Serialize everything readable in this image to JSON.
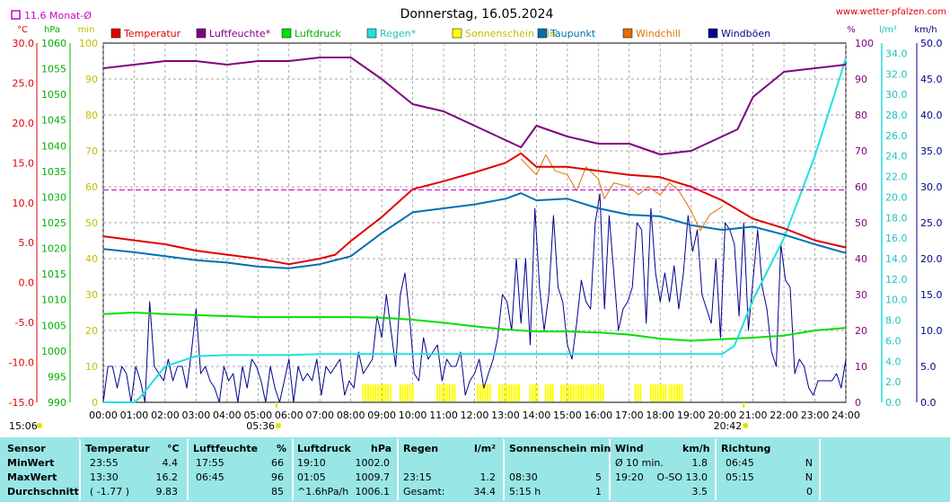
{
  "header": {
    "title": "Donnerstag, 16.05.2024",
    "website": "www.wetter-pfalzen.com",
    "month_avg_label": "11.6 Monat-Ø"
  },
  "colors": {
    "temperatur": "#e00000",
    "luftfeuchte": "#800080",
    "luftdruck": "#00e000",
    "regen": "#20e0e0",
    "sonnenschein": "#ffff00",
    "taupunkt": "#0070b0",
    "windchill": "#e07000",
    "windboeen": "#000090",
    "month_avg": "#cc00cc"
  },
  "chart_data": {
    "type": "line",
    "title": "Donnerstag, 16.05.2024",
    "legend_position": "top",
    "grid": true,
    "x": {
      "unit": "hours",
      "range": [
        0,
        24
      ],
      "tick_labels": [
        "00:00",
        "01:00",
        "02:00",
        "03:00",
        "04:00",
        "05:00",
        "06:00",
        "07:00",
        "08:00",
        "09:00",
        "10:00",
        "11:00",
        "12:00",
        "13:00",
        "14:00",
        "15:00",
        "16:00",
        "17:00",
        "18:00",
        "19:00",
        "20:00",
        "21:00",
        "22:00",
        "23:00",
        "24:00"
      ]
    },
    "axes": {
      "temp": {
        "unit": "°C",
        "range": [
          -15,
          30
        ],
        "ticks": [
          "-15.0",
          "-10.0",
          "-5.0",
          "0.0",
          "5.0",
          "10.0",
          "15.0",
          "20.0",
          "25.0",
          "30.0"
        ]
      },
      "pressure": {
        "unit": "hPa",
        "range": [
          990,
          1060
        ],
        "ticks": [
          "990",
          "995",
          "1000",
          "1005",
          "1010",
          "1015",
          "1020",
          "1025",
          "1030",
          "1035",
          "1040",
          "1045",
          "1050",
          "1055",
          "1060"
        ]
      },
      "month_avg_axis": {
        "unit": "min",
        "ticks": [
          "0",
          "10",
          "20",
          "30",
          "40",
          "50",
          "60",
          "70",
          "80",
          "90",
          "100"
        ]
      },
      "humidity": {
        "unit": "%",
        "range": [
          0,
          100
        ],
        "ticks": [
          "0",
          "10",
          "20",
          "30",
          "40",
          "50",
          "60",
          "70",
          "80",
          "90",
          "100"
        ]
      },
      "rain": {
        "unit": "l/m²",
        "range": [
          0,
          35
        ],
        "ticks": [
          "0.0",
          "2.0",
          "4.0",
          "6.0",
          "8.0",
          "10.0",
          "12.0",
          "14.0",
          "16.0",
          "18.0",
          "20.0",
          "22.0",
          "24.0",
          "26.0",
          "28.0",
          "30.0",
          "32.0",
          "34.0"
        ]
      },
      "wind": {
        "unit": "km/h",
        "range": [
          0,
          50
        ],
        "ticks": [
          "0.0",
          "5.0",
          "10.0",
          "15.0",
          "20.0",
          "25.0",
          "30.0",
          "35.0",
          "40.0",
          "45.0",
          "50.0"
        ]
      }
    },
    "month_avg_temp": 11.6,
    "sunrise": "05:36",
    "sunset": "20:42",
    "current_time": "15:06",
    "series": [
      {
        "name": "Temperatur",
        "axis": "temp",
        "x": [
          0,
          1,
          2,
          3,
          4,
          5,
          6,
          7,
          7.5,
          8,
          9,
          10,
          11,
          12,
          13,
          13.5,
          14,
          15,
          16,
          17,
          18,
          19,
          20,
          21,
          22,
          23,
          24
        ],
        "y": [
          5.8,
          5.3,
          4.8,
          4.0,
          3.5,
          3.0,
          2.3,
          3.0,
          3.5,
          5.2,
          8.2,
          11.7,
          12.7,
          13.8,
          15.0,
          16.2,
          14.5,
          14.5,
          14.0,
          13.5,
          13.2,
          12.0,
          10.3,
          8.0,
          6.8,
          5.3,
          4.4
        ]
      },
      {
        "name": "Luftfeuchte*",
        "axis": "humidity",
        "x": [
          0,
          1,
          2,
          3,
          4,
          5,
          6,
          7,
          8,
          9,
          10,
          11,
          12,
          13,
          13.5,
          14,
          15,
          16,
          17,
          18,
          19,
          20,
          20.5,
          21,
          22,
          23,
          24
        ],
        "y": [
          93,
          94,
          95,
          95,
          94,
          95,
          95,
          96,
          96,
          90,
          83,
          81,
          77,
          73,
          71,
          77,
          74,
          72,
          72,
          69,
          70,
          74,
          76,
          85,
          92,
          93,
          94
        ]
      },
      {
        "name": "Luftdruck",
        "axis": "pressure",
        "x": [
          0,
          1,
          2,
          3,
          4,
          5,
          6,
          7,
          8,
          9,
          10,
          11,
          12,
          13,
          14,
          15,
          16,
          17,
          18,
          19,
          20,
          21,
          22,
          23,
          24
        ],
        "y": [
          1007.2,
          1007.5,
          1007.2,
          1007.0,
          1006.8,
          1006.6,
          1006.6,
          1006.6,
          1006.6,
          1006.5,
          1006.1,
          1005.5,
          1004.8,
          1004.2,
          1003.8,
          1003.8,
          1003.6,
          1003.2,
          1002.4,
          1002.0,
          1002.3,
          1002.6,
          1003.0,
          1004.0,
          1004.5
        ]
      },
      {
        "name": "Regen*",
        "axis": "rain",
        "x": [
          0,
          1,
          1.2,
          2,
          3,
          4,
          5,
          6,
          7,
          8,
          19,
          20,
          20.4,
          21,
          22,
          23,
          24
        ],
        "y": [
          0,
          0,
          0.5,
          3.5,
          4.5,
          4.6,
          4.6,
          4.6,
          4.7,
          4.7,
          4.7,
          4.7,
          5.5,
          10,
          16,
          24,
          33.5
        ]
      },
      {
        "name": "Taupunkt",
        "axis": "temp",
        "x": [
          0,
          1,
          2,
          3,
          4,
          5,
          6,
          7,
          8,
          9,
          10,
          11,
          12,
          13,
          13.5,
          14,
          15,
          16,
          17,
          18,
          19,
          20,
          21,
          22,
          23,
          24
        ],
        "y": [
          4.2,
          3.8,
          3.3,
          2.8,
          2.5,
          2.0,
          1.8,
          2.3,
          3.3,
          6.2,
          8.8,
          9.3,
          9.8,
          10.5,
          11.2,
          10.3,
          10.5,
          9.3,
          8.5,
          8.3,
          7.2,
          6.6,
          7.0,
          6.0,
          4.8,
          3.7
        ]
      },
      {
        "name": "Windchill",
        "axis": "temp",
        "x": [
          13.5,
          14,
          14.3,
          14.6,
          15,
          15.3,
          15.6,
          16,
          16.2,
          16.5,
          17,
          17.3,
          17.6,
          18,
          18.3,
          18.6,
          19,
          19.3,
          19.6,
          20
        ],
        "y": [
          15.5,
          13.5,
          16.0,
          14.0,
          13.5,
          11.5,
          14.5,
          13.0,
          10.5,
          12.5,
          12.0,
          11.0,
          12.0,
          11.0,
          12.5,
          11.5,
          9.0,
          6.5,
          8.5,
          9.5
        ]
      },
      {
        "name": "Windböen",
        "axis": "wind",
        "x": [
          0,
          0.15,
          0.3,
          0.45,
          0.6,
          0.75,
          0.9,
          1.05,
          1.2,
          1.35,
          1.5,
          1.65,
          1.8,
          1.95,
          2.1,
          2.25,
          2.4,
          2.55,
          2.7,
          2.85,
          3.0,
          3.15,
          3.3,
          3.45,
          3.6,
          3.75,
          3.9,
          4.05,
          4.2,
          4.35,
          4.5,
          4.65,
          4.8,
          4.95,
          5.1,
          5.25,
          5.4,
          5.55,
          5.7,
          5.85,
          6.0,
          6.15,
          6.3,
          6.45,
          6.6,
          6.75,
          6.9,
          7.05,
          7.2,
          7.35,
          7.5,
          7.65,
          7.8,
          7.95,
          8.1,
          8.25,
          8.4,
          8.55,
          8.7,
          8.85,
          9.0,
          9.15,
          9.3,
          9.45,
          9.6,
          9.75,
          9.9,
          10.05,
          10.2,
          10.35,
          10.5,
          10.65,
          10.8,
          10.95,
          11.1,
          11.25,
          11.4,
          11.55,
          11.7,
          11.85,
          12.0,
          12.15,
          12.3,
          12.45,
          12.6,
          12.75,
          12.9,
          13.05,
          13.2,
          13.35,
          13.5,
          13.65,
          13.8,
          13.95,
          14.1,
          14.25,
          14.4,
          14.55,
          14.7,
          14.85,
          15.0,
          15.15,
          15.3,
          15.45,
          15.6,
          15.75,
          15.9,
          16.05,
          16.2,
          16.35,
          16.5,
          16.65,
          16.8,
          16.95,
          17.1,
          17.25,
          17.4,
          17.55,
          17.7,
          17.85,
          18.0,
          18.15,
          18.3,
          18.45,
          18.6,
          18.75,
          18.9,
          19.05,
          19.2,
          19.35,
          19.5,
          19.65,
          19.8,
          19.95,
          20.1,
          20.25,
          20.4,
          20.55,
          20.7,
          20.85,
          21.0,
          21.15,
          21.3,
          21.45,
          21.6,
          21.75,
          21.9,
          22.05,
          22.2,
          22.35,
          22.5,
          22.65,
          22.8,
          22.95,
          23.1,
          23.25,
          23.4,
          23.55,
          23.7,
          23.85,
          24.0
        ],
        "y": [
          0,
          5,
          5,
          2,
          5,
          4,
          0,
          5,
          3,
          0,
          14,
          5,
          4,
          3,
          6,
          3,
          5,
          5,
          2,
          7,
          13,
          4,
          5,
          3,
          2,
          0,
          5,
          3,
          4,
          0,
          5,
          2,
          6,
          5,
          3,
          0,
          5,
          2,
          0,
          3,
          6,
          0,
          5,
          3,
          4,
          3,
          6,
          1,
          5,
          4,
          5,
          6,
          1,
          3,
          2,
          7,
          4,
          5,
          6,
          12,
          9,
          15,
          10,
          5,
          15,
          18,
          12,
          4,
          3,
          9,
          6,
          7,
          8,
          3,
          6,
          5,
          5,
          7,
          1,
          3,
          4,
          6,
          2,
          4,
          6,
          9,
          15,
          14,
          10,
          20,
          11,
          20,
          8,
          27,
          16,
          10,
          15,
          26,
          16,
          14,
          8,
          6,
          11,
          17,
          14,
          13,
          25,
          29,
          13,
          26,
          18,
          10,
          13,
          14,
          16,
          25,
          24,
          11,
          27,
          18,
          14,
          18,
          14,
          19,
          13,
          18,
          26,
          21,
          24,
          15,
          13,
          11,
          20,
          9,
          25,
          24,
          22,
          12,
          25,
          10,
          17,
          24,
          16,
          13,
          7,
          5,
          22,
          17,
          16,
          4,
          6,
          5,
          2,
          1,
          3,
          3,
          3,
          3,
          4,
          2,
          6
        ]
      }
    ]
  },
  "stats": {
    "headers": {
      "sensor": "Sensor",
      "temperatur": "Temperatur",
      "temp_unit": "°C",
      "luftfeuchte": "Luftfeuchte",
      "hum_unit": "%",
      "luftdruck": "Luftdruck",
      "press_unit": "hPa",
      "regen": "Regen",
      "rain_unit": "l/m²",
      "sonnenschein": "Sonnenschein min",
      "wind": "Wind",
      "wind_unit": "km/h",
      "richtung": "Richtung"
    },
    "rows": [
      {
        "label": "MinWert",
        "temp_time": "23:55",
        "temp_val": "4.4",
        "hum_time": "17:55",
        "hum_val": "66",
        "press_time": "19:10",
        "press_val": "1002.0",
        "rain_time": "",
        "rain_val": "",
        "sun_time": "",
        "sun_val": "",
        "wind_label": "Ø 10 min.",
        "wind_val": "1.8",
        "dir_time": "06:45",
        "dir_val": "N"
      },
      {
        "label": "MaxWert",
        "temp_time": "13:30",
        "temp_val": "16.2",
        "hum_time": "06:45",
        "hum_val": "96",
        "press_time": "01:05",
        "press_val": "1009.7",
        "rain_time": "23:15",
        "rain_val": "1.2",
        "sun_time": "08:30",
        "sun_val": "5",
        "wind_label": "19:20",
        "wind_val": "O-SO 13.0",
        "dir_time": "05:15",
        "dir_val": "N"
      },
      {
        "label": "Durchschnitt",
        "temp_time": "( -1.77 )",
        "temp_val": "9.83",
        "hum_time": "",
        "hum_val": "85",
        "press_time": "^1.6hPa/h",
        "press_val": "1006.1",
        "rain_time": "Gesamt:",
        "rain_val": "34.4",
        "sun_time": "5:15 h",
        "sun_val": "1",
        "wind_label": "",
        "wind_val": "3.5",
        "dir_time": "",
        "dir_val": "0"
      }
    ]
  }
}
